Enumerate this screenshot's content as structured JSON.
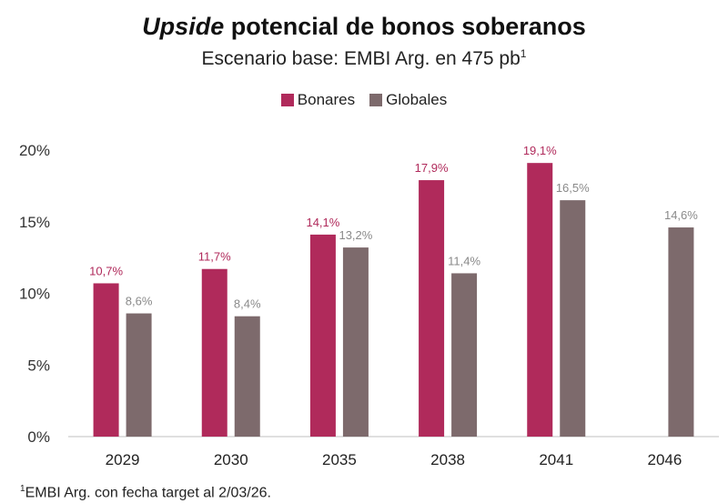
{
  "header": {
    "title_italic": "Upside",
    "title_rest": "potencial de bonos soberanos",
    "subtitle": "Escenario base: EMBI Arg. en 475 pb",
    "subtitle_sup": "1"
  },
  "footnote": {
    "marker": "1",
    "text": "EMBI Arg. con fecha target al 2/03/26."
  },
  "colors": {
    "bonares": "#b02a5b",
    "globales": "#7d6a6c",
    "bonares_label": "#b02a5b",
    "globales_label": "#8a8a8a",
    "axis": "#bfbfbf"
  },
  "chart_data": {
    "type": "bar",
    "title": "Upside potencial de bonos soberanos",
    "subtitle": "Escenario base: EMBI Arg. en 475 pb",
    "categories": [
      "2029",
      "2030",
      "2035",
      "2038",
      "2041",
      "2046"
    ],
    "series": [
      {
        "name": "Bonares",
        "values": [
          10.7,
          11.7,
          14.1,
          17.9,
          19.1,
          null
        ],
        "labels": [
          "10,7%",
          "11,7%",
          "14,1%",
          "17,9%",
          "19,1%",
          null
        ]
      },
      {
        "name": "Globales",
        "values": [
          8.6,
          8.4,
          13.2,
          11.4,
          16.5,
          14.6
        ],
        "labels": [
          "8,6%",
          "8,4%",
          "13,2%",
          "11,4%",
          "16,5%",
          "14,6%"
        ]
      }
    ],
    "yticks": [
      {
        "value": 0,
        "label": "0%"
      },
      {
        "value": 5,
        "label": "5%"
      },
      {
        "value": 10,
        "label": "10%"
      },
      {
        "value": 15,
        "label": "15%"
      },
      {
        "value": 20,
        "label": "20%"
      }
    ],
    "ylim": [
      0,
      20
    ],
    "xlabel": "",
    "ylabel": "",
    "legend": "top-center",
    "grid": false
  }
}
